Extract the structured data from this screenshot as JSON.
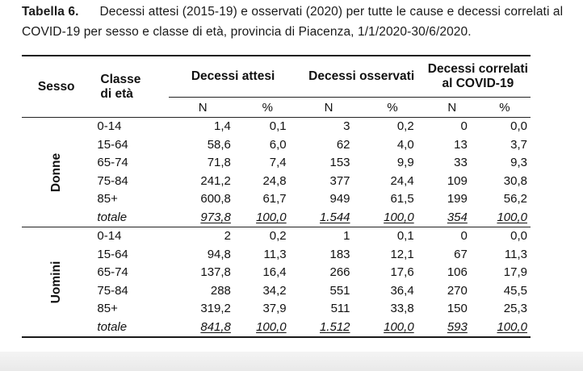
{
  "caption": {
    "label": "Tabella 6.",
    "text": "Decessi attesi (2015-19) e osservati (2020) per tutte le cause e decessi correlati al COVID-19 per sesso e classe di età, provincia di Piacenza, 1/1/2020-30/6/2020."
  },
  "headers": {
    "sesso": "Sesso",
    "classe": "Classe di età",
    "attesi": "Decessi attesi",
    "osservati": "Decessi osservati",
    "covid": "Decessi correlati al COVID-19",
    "n": "N",
    "pct": "%"
  },
  "groups": [
    {
      "sex": "Donne",
      "rows": [
        {
          "cls": "0-14",
          "att_n": "1,4",
          "att_p": "0,1",
          "oss_n": "3",
          "oss_p": "0,2",
          "cov_n": "0",
          "cov_p": "0,0"
        },
        {
          "cls": "15-64",
          "att_n": "58,6",
          "att_p": "6,0",
          "oss_n": "62",
          "oss_p": "4,0",
          "cov_n": "13",
          "cov_p": "3,7"
        },
        {
          "cls": "65-74",
          "att_n": "71,8",
          "att_p": "7,4",
          "oss_n": "153",
          "oss_p": "9,9",
          "cov_n": "33",
          "cov_p": "9,3"
        },
        {
          "cls": "75-84",
          "att_n": "241,2",
          "att_p": "24,8",
          "oss_n": "377",
          "oss_p": "24,4",
          "cov_n": "109",
          "cov_p": "30,8"
        },
        {
          "cls": "85+",
          "att_n": "600,8",
          "att_p": "61,7",
          "oss_n": "949",
          "oss_p": "61,5",
          "cov_n": "199",
          "cov_p": "56,2"
        }
      ],
      "total": {
        "cls": "totale",
        "att_n": "973,8",
        "att_p": "100,0",
        "oss_n": "1.544",
        "oss_p": "100,0",
        "cov_n": "354",
        "cov_p": "100,0"
      }
    },
    {
      "sex": "Uomini",
      "rows": [
        {
          "cls": "0-14",
          "att_n": "2",
          "att_p": "0,2",
          "oss_n": "1",
          "oss_p": "0,1",
          "cov_n": "0",
          "cov_p": "0,0"
        },
        {
          "cls": "15-64",
          "att_n": "94,8",
          "att_p": "11,3",
          "oss_n": "183",
          "oss_p": "12,1",
          "cov_n": "67",
          "cov_p": "11,3"
        },
        {
          "cls": "65-74",
          "att_n": "137,8",
          "att_p": "16,4",
          "oss_n": "266",
          "oss_p": "17,6",
          "cov_n": "106",
          "cov_p": "17,9"
        },
        {
          "cls": "75-84",
          "att_n": "288",
          "att_p": "34,2",
          "oss_n": "551",
          "oss_p": "36,4",
          "cov_n": "270",
          "cov_p": "45,5"
        },
        {
          "cls": "85+",
          "att_n": "319,2",
          "att_p": "37,9",
          "oss_n": "511",
          "oss_p": "33,8",
          "cov_n": "150",
          "cov_p": "25,3"
        }
      ],
      "total": {
        "cls": "totale",
        "att_n": "841,8",
        "att_p": "100,0",
        "oss_n": "1.512",
        "oss_p": "100,0",
        "cov_n": "593",
        "cov_p": "100,0"
      }
    }
  ]
}
